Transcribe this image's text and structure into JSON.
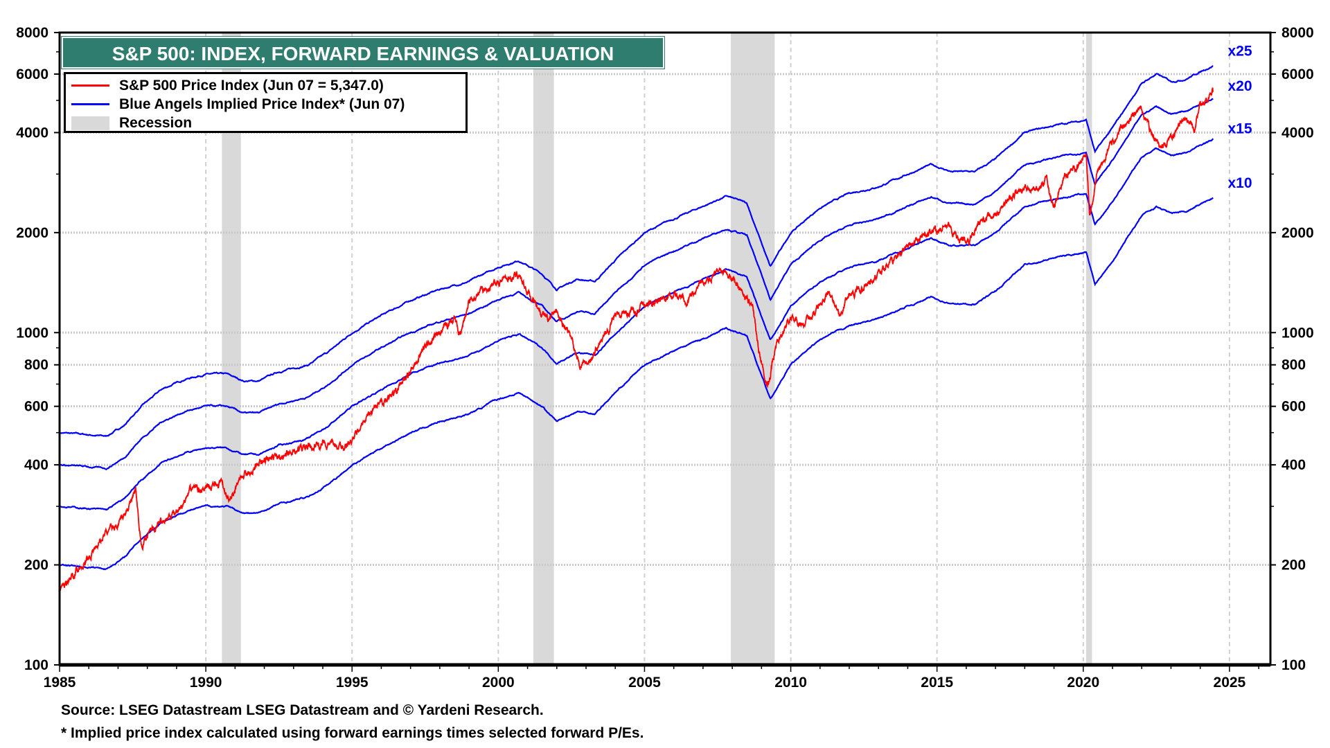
{
  "chart_data": {
    "type": "line",
    "title": "S&P 500: INDEX, FORWARD EARNINGS & VALUATION",
    "xlabel": "",
    "ylabel": "",
    "x_range": [
      1985,
      2026.4
    ],
    "ylim": [
      100,
      8000
    ],
    "y_scale": "log",
    "grid": true,
    "legend_placement": "top-left",
    "x_ticks": [
      "1985",
      "1990",
      "1995",
      "2000",
      "2005",
      "2010",
      "2015",
      "2020",
      "2025"
    ],
    "y_ticks": [
      "100",
      "200",
      "400",
      "600",
      "800",
      "1000",
      "2000",
      "4000",
      "6000",
      "8000"
    ],
    "legend": [
      {
        "label": "S&P 500 Price Index (Jun 07 = 5,347.0)",
        "color": "#ff0000",
        "kind": "line"
      },
      {
        "label": "Blue Angels Implied Price Index* (Jun 07)",
        "color": "#0000ff",
        "kind": "line"
      },
      {
        "label": "Recession",
        "color": "#d9d9d9",
        "kind": "band"
      }
    ],
    "recessions": [
      [
        1990.55,
        1991.2
      ],
      [
        2001.2,
        2001.9
      ],
      [
        2007.95,
        2009.45
      ],
      [
        2020.1,
        2020.3
      ]
    ],
    "sp500": {
      "color": "#ff0000",
      "points": [
        [
          1985.0,
          167
        ],
        [
          1985.5,
          190
        ],
        [
          1986.0,
          210
        ],
        [
          1986.5,
          245
        ],
        [
          1987.0,
          265
        ],
        [
          1987.6,
          330
        ],
        [
          1987.8,
          225
        ],
        [
          1988.0,
          250
        ],
        [
          1988.5,
          270
        ],
        [
          1989.0,
          285
        ],
        [
          1989.6,
          345
        ],
        [
          1990.0,
          335
        ],
        [
          1990.5,
          355
        ],
        [
          1990.8,
          310
        ],
        [
          1991.2,
          370
        ],
        [
          1991.5,
          385
        ],
        [
          1992.0,
          410
        ],
        [
          1993.0,
          440
        ],
        [
          1994.0,
          465
        ],
        [
          1994.5,
          455
        ],
        [
          1995.0,
          470
        ],
        [
          1995.5,
          560
        ],
        [
          1996.0,
          615
        ],
        [
          1996.5,
          665
        ],
        [
          1997.0,
          760
        ],
        [
          1997.6,
          940
        ],
        [
          1998.0,
          980
        ],
        [
          1998.5,
          1120
        ],
        [
          1998.7,
          970
        ],
        [
          1999.0,
          1250
        ],
        [
          1999.5,
          1340
        ],
        [
          2000.0,
          1430
        ],
        [
          2000.7,
          1500
        ],
        [
          2001.0,
          1330
        ],
        [
          2001.7,
          1080
        ],
        [
          2002.0,
          1150
        ],
        [
          2002.5,
          960
        ],
        [
          2002.8,
          800
        ],
        [
          2003.2,
          840
        ],
        [
          2003.7,
          1000
        ],
        [
          2004.0,
          1130
        ],
        [
          2005.0,
          1200
        ],
        [
          2006.0,
          1290
        ],
        [
          2006.5,
          1270
        ],
        [
          2007.0,
          1440
        ],
        [
          2007.8,
          1560
        ],
        [
          2008.3,
          1350
        ],
        [
          2008.7,
          1200
        ],
        [
          2008.9,
          880
        ],
        [
          2009.2,
          690
        ],
        [
          2009.5,
          920
        ],
        [
          2010.0,
          1120
        ],
        [
          2010.5,
          1060
        ],
        [
          2011.3,
          1350
        ],
        [
          2011.7,
          1130
        ],
        [
          2012.0,
          1300
        ],
        [
          2012.8,
          1420
        ],
        [
          2013.0,
          1480
        ],
        [
          2014.0,
          1830
        ],
        [
          2014.8,
          2000
        ],
        [
          2015.4,
          2100
        ],
        [
          2015.7,
          1920
        ],
        [
          2016.1,
          1870
        ],
        [
          2016.5,
          2170
        ],
        [
          2017.0,
          2270
        ],
        [
          2018.0,
          2800
        ],
        [
          2018.3,
          2650
        ],
        [
          2018.75,
          2920
        ],
        [
          2018.98,
          2400
        ],
        [
          2019.3,
          2900
        ],
        [
          2020.1,
          3380
        ],
        [
          2020.22,
          2240
        ],
        [
          2020.5,
          3150
        ],
        [
          2021.0,
          3750
        ],
        [
          2021.5,
          4300
        ],
        [
          2022.0,
          4770
        ],
        [
          2022.45,
          3750
        ],
        [
          2022.8,
          3580
        ],
        [
          2023.0,
          3900
        ],
        [
          2023.5,
          4450
        ],
        [
          2023.8,
          4120
        ],
        [
          2024.0,
          4800
        ],
        [
          2024.45,
          5347
        ]
      ]
    },
    "forward_earnings_multiples": [
      {
        "label": "x25",
        "multiple": 25
      },
      {
        "label": "x20",
        "multiple": 20
      },
      {
        "label": "x15",
        "multiple": 15
      },
      {
        "label": "x10",
        "multiple": 10
      }
    ],
    "implied_series_color": "#0000ff",
    "forward_earnings": [
      [
        1985.0,
        20
      ],
      [
        1986.0,
        19.7
      ],
      [
        1986.6,
        19.5
      ],
      [
        1987.2,
        21
      ],
      [
        1987.8,
        24
      ],
      [
        1988.5,
        27
      ],
      [
        1989.3,
        29
      ],
      [
        1990.0,
        30
      ],
      [
        1990.7,
        30
      ],
      [
        1991.3,
        28.6
      ],
      [
        1991.8,
        28.6
      ],
      [
        1992.5,
        30.5
      ],
      [
        1993.5,
        32
      ],
      [
        1994.2,
        35
      ],
      [
        1995.0,
        40
      ],
      [
        1996.0,
        45
      ],
      [
        1997.0,
        50
      ],
      [
        1998.0,
        54
      ],
      [
        1999.0,
        57
      ],
      [
        2000.0,
        63
      ],
      [
        2000.7,
        66
      ],
      [
        2001.5,
        60
      ],
      [
        2002.0,
        54
      ],
      [
        2002.7,
        58
      ],
      [
        2003.3,
        57
      ],
      [
        2004.0,
        66
      ],
      [
        2005.0,
        80
      ],
      [
        2006.0,
        88
      ],
      [
        2007.0,
        96
      ],
      [
        2007.8,
        103
      ],
      [
        2008.5,
        98
      ],
      [
        2009.3,
        63
      ],
      [
        2010.0,
        80
      ],
      [
        2011.0,
        95
      ],
      [
        2012.0,
        105
      ],
      [
        2013.0,
        110
      ],
      [
        2014.0,
        120
      ],
      [
        2014.8,
        128
      ],
      [
        2015.5,
        122
      ],
      [
        2016.3,
        122
      ],
      [
        2017.0,
        133
      ],
      [
        2018.0,
        160
      ],
      [
        2019.0,
        168
      ],
      [
        2020.1,
        175
      ],
      [
        2020.4,
        140
      ],
      [
        2021.0,
        165
      ],
      [
        2022.0,
        225
      ],
      [
        2022.5,
        240
      ],
      [
        2023.0,
        228
      ],
      [
        2023.5,
        232
      ],
      [
        2024.45,
        255
      ]
    ]
  },
  "source_note": "Source: LSEG Datastream LSEG Datastream and © Yardeni Research.",
  "footnote": "* Implied price index calculated using forward earnings times selected forward P/Es."
}
